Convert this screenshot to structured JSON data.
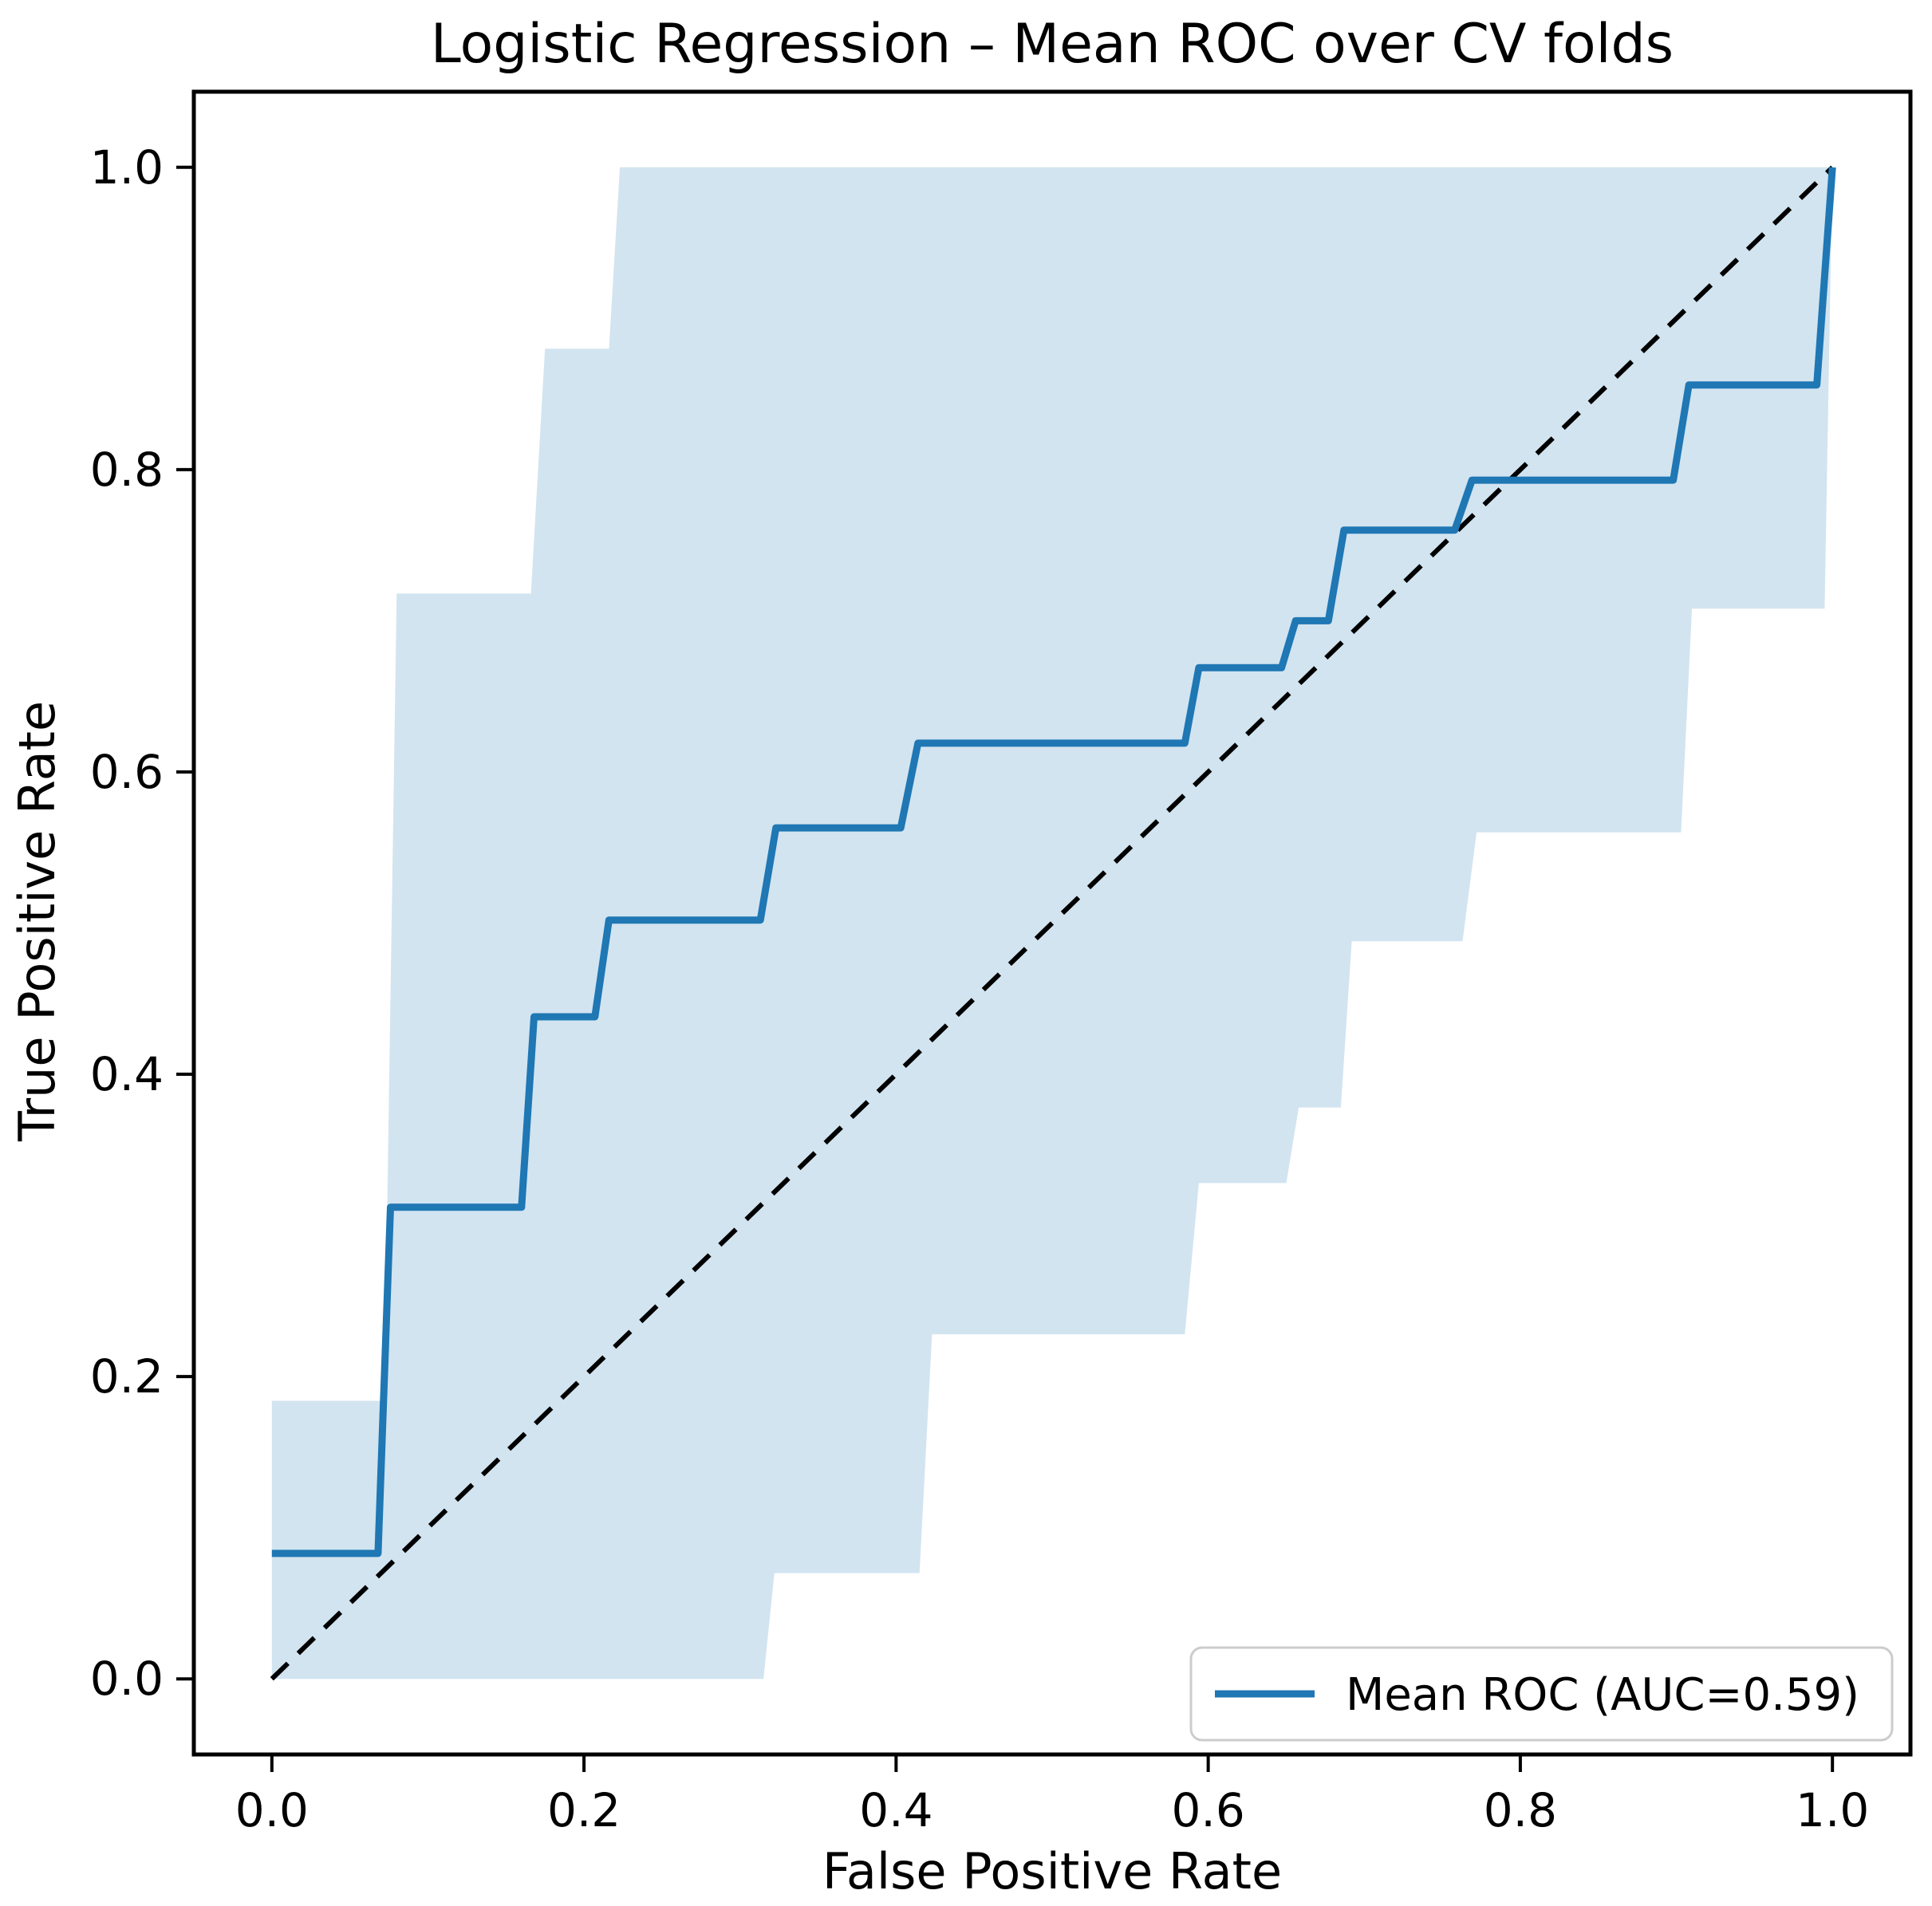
{
  "chart_data": {
    "type": "line",
    "title": "Logistic Regression – Mean ROC over CV folds",
    "xlabel": "False Positive Rate",
    "ylabel": "True Positive Rate",
    "xlim": [
      -0.05,
      1.05
    ],
    "ylim": [
      -0.05,
      1.05
    ],
    "grid": false,
    "x_tick_values": [
      0.0,
      0.2,
      0.4,
      0.6,
      0.8,
      1.0
    ],
    "x_tick_labels": [
      "0.0",
      "0.2",
      "0.4",
      "0.6",
      "0.8",
      "1.0"
    ],
    "y_tick_values": [
      0.0,
      0.2,
      0.4,
      0.6,
      0.8,
      1.0
    ],
    "y_tick_labels": [
      "0.0",
      "0.2",
      "0.4",
      "0.6",
      "0.8",
      "1.0"
    ],
    "colors": {
      "mean_roc_line": "#1f77b4",
      "confidence_band_fill": "rgba(31,119,180,0.2)",
      "chance_line": "#000000",
      "legend_border": "#cccccc",
      "legend_background": "rgba(255,255,255,0.8)"
    },
    "legend": {
      "position": "lower right",
      "entries": [
        {
          "label": "Mean ROC (AUC=0.59)",
          "color": "#1f77b4",
          "style": "solid"
        }
      ]
    },
    "series": [
      {
        "name": "mean_roc",
        "style": "solid",
        "color": "#1f77b4",
        "points": [
          [
            0.0,
            0.083
          ],
          [
            0.068,
            0.083
          ],
          [
            0.076,
            0.312
          ],
          [
            0.16,
            0.312
          ],
          [
            0.168,
            0.438
          ],
          [
            0.207,
            0.438
          ],
          [
            0.216,
            0.502
          ],
          [
            0.313,
            0.502
          ],
          [
            0.323,
            0.563
          ],
          [
            0.403,
            0.563
          ],
          [
            0.414,
            0.619
          ],
          [
            0.585,
            0.619
          ],
          [
            0.594,
            0.669
          ],
          [
            0.647,
            0.669
          ],
          [
            0.656,
            0.7
          ],
          [
            0.677,
            0.7
          ],
          [
            0.687,
            0.76
          ],
          [
            0.758,
            0.76
          ],
          [
            0.769,
            0.793
          ],
          [
            0.898,
            0.793
          ],
          [
            0.908,
            0.856
          ],
          [
            0.99,
            0.856
          ],
          [
            1.0,
            1.0
          ]
        ]
      },
      {
        "name": "chance_diagonal",
        "style": "dashed",
        "color": "#000000",
        "points": [
          [
            0.0,
            0.0
          ],
          [
            1.0,
            1.0
          ]
        ]
      },
      {
        "name": "confidence_band_upper",
        "style": "band-edge",
        "points": [
          [
            0.0,
            0.184
          ],
          [
            0.072,
            0.184
          ],
          [
            0.08,
            0.718
          ],
          [
            0.166,
            0.718
          ],
          [
            0.175,
            0.88
          ],
          [
            0.216,
            0.88
          ],
          [
            0.223,
            1.0
          ],
          [
            1.0,
            1.0
          ]
        ]
      },
      {
        "name": "confidence_band_lower",
        "style": "band-edge",
        "points": [
          [
            0.0,
            0.0
          ],
          [
            0.315,
            0.0
          ],
          [
            0.322,
            0.07
          ],
          [
            0.415,
            0.07
          ],
          [
            0.423,
            0.228
          ],
          [
            0.585,
            0.228
          ],
          [
            0.594,
            0.328
          ],
          [
            0.65,
            0.328
          ],
          [
            0.658,
            0.378
          ],
          [
            0.685,
            0.378
          ],
          [
            0.692,
            0.488
          ],
          [
            0.763,
            0.488
          ],
          [
            0.772,
            0.56
          ],
          [
            0.903,
            0.56
          ],
          [
            0.91,
            0.708
          ],
          [
            0.995,
            0.708
          ],
          [
            1.0,
            1.0
          ]
        ]
      }
    ]
  }
}
